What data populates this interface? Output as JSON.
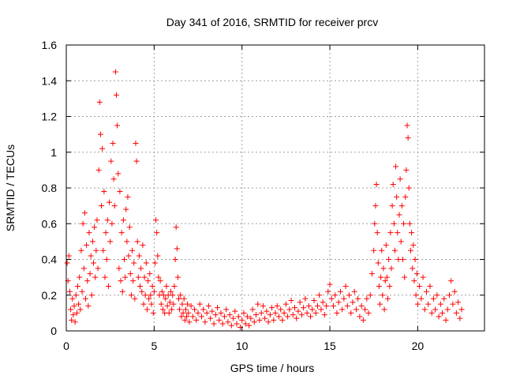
{
  "chart_data": {
    "type": "scatter",
    "title": "Day 341 of 2016, SRMTID for receiver prcv",
    "xlabel": "GPS time / hours",
    "ylabel": "SRMTID / TECUs",
    "xlim": [
      0,
      23.8
    ],
    "ylim": [
      0,
      1.6
    ],
    "xticks": [
      0,
      5,
      10,
      15,
      20
    ],
    "xtick_labels": [
      "0",
      "5",
      "10",
      "15",
      "20"
    ],
    "yticks": [
      0,
      0.2,
      0.4,
      0.6,
      0.8,
      1,
      1.2,
      1.4,
      1.6
    ],
    "ytick_labels": [
      "0",
      "0.2",
      "0.4",
      "0.6",
      "0.8",
      "1",
      "1.2",
      "1.4",
      "1.6"
    ],
    "grid": true,
    "marker": "+",
    "series": [
      {
        "name": "SRMTID",
        "color": "#ff0000",
        "points": [
          [
            0.05,
            0.38
          ],
          [
            0.1,
            0.28
          ],
          [
            0.15,
            0.42
          ],
          [
            0.2,
            0.22
          ],
          [
            0.25,
            0.12
          ],
          [
            0.3,
            0.06
          ],
          [
            0.35,
            0.18
          ],
          [
            0.4,
            0.09
          ],
          [
            0.45,
            0.14
          ],
          [
            0.5,
            0.05
          ],
          [
            0.55,
            0.2
          ],
          [
            0.6,
            0.1
          ],
          [
            0.65,
            0.25
          ],
          [
            0.7,
            0.15
          ],
          [
            0.75,
            0.3
          ],
          [
            0.8,
            0.12
          ],
          [
            0.85,
            0.45
          ],
          [
            0.9,
            0.22
          ],
          [
            0.95,
            0.6
          ],
          [
            1.0,
            0.35
          ],
          [
            1.05,
            0.66
          ],
          [
            1.1,
            0.18
          ],
          [
            1.15,
            0.48
          ],
          [
            1.2,
            0.28
          ],
          [
            1.25,
            0.14
          ],
          [
            1.3,
            0.55
          ],
          [
            1.35,
            0.32
          ],
          [
            1.4,
            0.42
          ],
          [
            1.45,
            0.2
          ],
          [
            1.5,
            0.5
          ],
          [
            1.55,
            0.38
          ],
          [
            1.6,
            0.58
          ],
          [
            1.65,
            0.3
          ],
          [
            1.7,
            0.45
          ],
          [
            1.75,
            0.62
          ],
          [
            1.8,
            0.35
          ],
          [
            1.85,
            0.9
          ],
          [
            1.9,
            1.28
          ],
          [
            1.95,
            1.1
          ],
          [
            2.0,
            0.7
          ],
          [
            2.05,
            1.02
          ],
          [
            2.1,
            0.45
          ],
          [
            2.15,
            0.78
          ],
          [
            2.2,
            0.3
          ],
          [
            2.25,
            0.55
          ],
          [
            2.3,
            0.4
          ],
          [
            2.35,
            0.62
          ],
          [
            2.4,
            0.25
          ],
          [
            2.45,
            0.72
          ],
          [
            2.5,
            0.5
          ],
          [
            2.55,
            0.95
          ],
          [
            2.6,
            0.6
          ],
          [
            2.65,
            1.05
          ],
          [
            2.7,
            0.85
          ],
          [
            2.75,
            0.7
          ],
          [
            2.8,
            1.45
          ],
          [
            2.85,
            1.32
          ],
          [
            2.9,
            1.15
          ],
          [
            2.95,
            0.88
          ],
          [
            3.0,
            0.35
          ],
          [
            3.05,
            0.78
          ],
          [
            3.1,
            0.28
          ],
          [
            3.15,
            0.55
          ],
          [
            3.2,
            0.22
          ],
          [
            3.25,
            0.62
          ],
          [
            3.3,
            0.4
          ],
          [
            3.35,
            0.3
          ],
          [
            3.4,
            0.68
          ],
          [
            3.45,
            0.5
          ],
          [
            3.5,
            0.75
          ],
          [
            3.55,
            0.42
          ],
          [
            3.6,
            0.58
          ],
          [
            3.65,
            0.32
          ],
          [
            3.7,
            0.2
          ],
          [
            3.75,
            0.45
          ],
          [
            3.8,
            0.28
          ],
          [
            3.85,
            0.38
          ],
          [
            3.9,
            0.18
          ],
          [
            3.95,
            1.05
          ],
          [
            4.0,
            0.95
          ],
          [
            4.05,
            0.5
          ],
          [
            4.1,
            0.3
          ],
          [
            4.15,
            0.42
          ],
          [
            4.2,
            0.25
          ],
          [
            4.25,
            0.35
          ],
          [
            4.3,
            0.22
          ],
          [
            4.35,
            0.48
          ],
          [
            4.4,
            0.15
          ],
          [
            4.45,
            0.3
          ],
          [
            4.5,
            0.2
          ],
          [
            4.55,
            0.38
          ],
          [
            4.6,
            0.12
          ],
          [
            4.65,
            0.28
          ],
          [
            4.7,
            0.18
          ],
          [
            4.75,
            0.32
          ],
          [
            4.8,
            0.2
          ],
          [
            4.85,
            0.15
          ],
          [
            4.9,
            0.25
          ],
          [
            4.95,
            0.1
          ],
          [
            5.0,
            0.22
          ],
          [
            5.05,
            0.38
          ],
          [
            5.1,
            0.62
          ],
          [
            5.15,
            0.55
          ],
          [
            5.2,
            0.42
          ],
          [
            5.25,
            0.3
          ],
          [
            5.3,
            0.2
          ],
          [
            5.35,
            0.28
          ],
          [
            5.4,
            0.15
          ],
          [
            5.45,
            0.22
          ],
          [
            5.5,
            0.12
          ],
          [
            5.55,
            0.2
          ],
          [
            5.6,
            0.1
          ],
          [
            5.65,
            0.18
          ],
          [
            5.7,
            0.25
          ],
          [
            5.75,
            0.14
          ],
          [
            5.8,
            0.2
          ],
          [
            5.85,
            0.1
          ],
          [
            5.9,
            0.16
          ],
          [
            5.95,
            0.22
          ],
          [
            6.0,
            0.12
          ],
          [
            6.05,
            0.2
          ],
          [
            6.1,
            0.15
          ],
          [
            6.15,
            0.25
          ],
          [
            6.2,
            0.4
          ],
          [
            6.25,
            0.58
          ],
          [
            6.3,
            0.46
          ],
          [
            6.35,
            0.3
          ],
          [
            6.4,
            0.18
          ],
          [
            6.45,
            0.12
          ],
          [
            6.5,
            0.2
          ],
          [
            6.55,
            0.08
          ],
          [
            6.6,
            0.15
          ],
          [
            6.65,
            0.1
          ],
          [
            6.7,
            0.18
          ],
          [
            6.75,
            0.06
          ],
          [
            6.8,
            0.12
          ],
          [
            6.85,
            0.08
          ],
          [
            6.9,
            0.15
          ],
          [
            6.95,
            0.1
          ],
          [
            7.0,
            0.05
          ],
          [
            7.1,
            0.14
          ],
          [
            7.2,
            0.08
          ],
          [
            7.3,
            0.12
          ],
          [
            7.4,
            0.06
          ],
          [
            7.5,
            0.1
          ],
          [
            7.6,
            0.15
          ],
          [
            7.7,
            0.08
          ],
          [
            7.8,
            0.12
          ],
          [
            7.9,
            0.05
          ],
          [
            8.0,
            0.1
          ],
          [
            8.1,
            0.14
          ],
          [
            8.2,
            0.07
          ],
          [
            8.3,
            0.11
          ],
          [
            8.4,
            0.04
          ],
          [
            8.5,
            0.09
          ],
          [
            8.6,
            0.13
          ],
          [
            8.7,
            0.06
          ],
          [
            8.8,
            0.1
          ],
          [
            8.9,
            0.04
          ],
          [
            9.0,
            0.08
          ],
          [
            9.1,
            0.12
          ],
          [
            9.2,
            0.05
          ],
          [
            9.3,
            0.09
          ],
          [
            9.4,
            0.03
          ],
          [
            9.5,
            0.07
          ],
          [
            9.6,
            0.11
          ],
          [
            9.7,
            0.04
          ],
          [
            9.8,
            0.08
          ],
          [
            9.9,
            0.02
          ],
          [
            10.0,
            0.06
          ],
          [
            10.1,
            0.1
          ],
          [
            10.2,
            0.04
          ],
          [
            10.3,
            0.08
          ],
          [
            10.4,
            0.03
          ],
          [
            10.5,
            0.07
          ],
          [
            10.6,
            0.12
          ],
          [
            10.7,
            0.05
          ],
          [
            10.8,
            0.09
          ],
          [
            10.9,
            0.15
          ],
          [
            11.0,
            0.06
          ],
          [
            11.1,
            0.1
          ],
          [
            11.2,
            0.14
          ],
          [
            11.3,
            0.07
          ],
          [
            11.4,
            0.11
          ],
          [
            11.5,
            0.05
          ],
          [
            11.6,
            0.09
          ],
          [
            11.7,
            0.13
          ],
          [
            11.8,
            0.06
          ],
          [
            11.9,
            0.1
          ],
          [
            12.0,
            0.14
          ],
          [
            12.1,
            0.08
          ],
          [
            12.2,
            0.12
          ],
          [
            12.3,
            0.06
          ],
          [
            12.4,
            0.1
          ],
          [
            12.5,
            0.15
          ],
          [
            12.6,
            0.08
          ],
          [
            12.7,
            0.12
          ],
          [
            12.8,
            0.17
          ],
          [
            12.9,
            0.09
          ],
          [
            13.0,
            0.13
          ],
          [
            13.1,
            0.07
          ],
          [
            13.2,
            0.11
          ],
          [
            13.3,
            0.16
          ],
          [
            13.4,
            0.09
          ],
          [
            13.5,
            0.13
          ],
          [
            13.6,
            0.18
          ],
          [
            13.7,
            0.1
          ],
          [
            13.8,
            0.14
          ],
          [
            13.9,
            0.08
          ],
          [
            14.0,
            0.12
          ],
          [
            14.1,
            0.17
          ],
          [
            14.2,
            0.1
          ],
          [
            14.3,
            0.14
          ],
          [
            14.4,
            0.2
          ],
          [
            14.5,
            0.12
          ],
          [
            14.6,
            0.16
          ],
          [
            14.7,
            0.09
          ],
          [
            14.8,
            0.14
          ],
          [
            14.9,
            0.22
          ],
          [
            15.0,
            0.26
          ],
          [
            15.1,
            0.18
          ],
          [
            15.2,
            0.14
          ],
          [
            15.3,
            0.2
          ],
          [
            15.4,
            0.1
          ],
          [
            15.5,
            0.16
          ],
          [
            15.6,
            0.22
          ],
          [
            15.7,
            0.12
          ],
          [
            15.8,
            0.18
          ],
          [
            15.9,
            0.25
          ],
          [
            16.0,
            0.14
          ],
          [
            16.1,
            0.2
          ],
          [
            16.2,
            0.1
          ],
          [
            16.3,
            0.16
          ],
          [
            16.4,
            0.22
          ],
          [
            16.5,
            0.12
          ],
          [
            16.6,
            0.18
          ],
          [
            16.7,
            0.08
          ],
          [
            16.8,
            0.14
          ],
          [
            16.9,
            0.06
          ],
          [
            17.0,
            0.12
          ],
          [
            17.1,
            0.18
          ],
          [
            17.2,
            0.1
          ],
          [
            17.3,
            0.2
          ],
          [
            17.4,
            0.32
          ],
          [
            17.5,
            0.45
          ],
          [
            17.55,
            0.6
          ],
          [
            17.6,
            0.7
          ],
          [
            17.65,
            0.82
          ],
          [
            17.7,
            0.55
          ],
          [
            17.75,
            0.38
          ],
          [
            17.8,
            0.25
          ],
          [
            17.85,
            0.15
          ],
          [
            17.9,
            0.3
          ],
          [
            17.95,
            0.45
          ],
          [
            18.0,
            0.2
          ],
          [
            18.05,
            0.35
          ],
          [
            18.1,
            0.12
          ],
          [
            18.15,
            0.28
          ],
          [
            18.2,
            0.48
          ],
          [
            18.25,
            0.3
          ],
          [
            18.3,
            0.18
          ],
          [
            18.35,
            0.4
          ],
          [
            18.4,
            0.25
          ],
          [
            18.45,
            0.55
          ],
          [
            18.5,
            0.35
          ],
          [
            18.55,
            0.7
          ],
          [
            18.6,
            0.82
          ],
          [
            18.65,
            0.6
          ],
          [
            18.7,
            0.45
          ],
          [
            18.75,
            0.92
          ],
          [
            18.8,
            0.75
          ],
          [
            18.85,
            0.55
          ],
          [
            18.9,
            0.4
          ],
          [
            18.95,
            0.65
          ],
          [
            19.0,
            0.85
          ],
          [
            19.05,
            0.5
          ],
          [
            19.1,
            0.7
          ],
          [
            19.15,
            0.4
          ],
          [
            19.2,
            0.6
          ],
          [
            19.25,
            0.3
          ],
          [
            19.3,
            0.75
          ],
          [
            19.35,
            0.9
          ],
          [
            19.4,
            1.15
          ],
          [
            19.45,
            1.08
          ],
          [
            19.5,
            0.8
          ],
          [
            19.55,
            0.6
          ],
          [
            19.6,
            0.45
          ],
          [
            19.65,
            0.55
          ],
          [
            19.7,
            0.35
          ],
          [
            19.75,
            0.48
          ],
          [
            19.8,
            0.28
          ],
          [
            19.85,
            0.4
          ],
          [
            19.9,
            0.2
          ],
          [
            19.95,
            0.32
          ],
          [
            20.0,
            0.15
          ],
          [
            20.1,
            0.25
          ],
          [
            20.2,
            0.18
          ],
          [
            20.3,
            0.3
          ],
          [
            20.4,
            0.12
          ],
          [
            20.5,
            0.22
          ],
          [
            20.6,
            0.15
          ],
          [
            20.7,
            0.25
          ],
          [
            20.8,
            0.1
          ],
          [
            20.9,
            0.18
          ],
          [
            21.0,
            0.12
          ],
          [
            21.1,
            0.2
          ],
          [
            21.2,
            0.08
          ],
          [
            21.3,
            0.15
          ],
          [
            21.4,
            0.1
          ],
          [
            21.5,
            0.18
          ],
          [
            21.6,
            0.06
          ],
          [
            21.7,
            0.12
          ],
          [
            21.8,
            0.2
          ],
          [
            21.9,
            0.28
          ],
          [
            22.0,
            0.15
          ],
          [
            22.1,
            0.22
          ],
          [
            22.2,
            0.1
          ],
          [
            22.3,
            0.16
          ],
          [
            22.4,
            0.07
          ],
          [
            22.5,
            0.12
          ]
        ]
      }
    ]
  }
}
